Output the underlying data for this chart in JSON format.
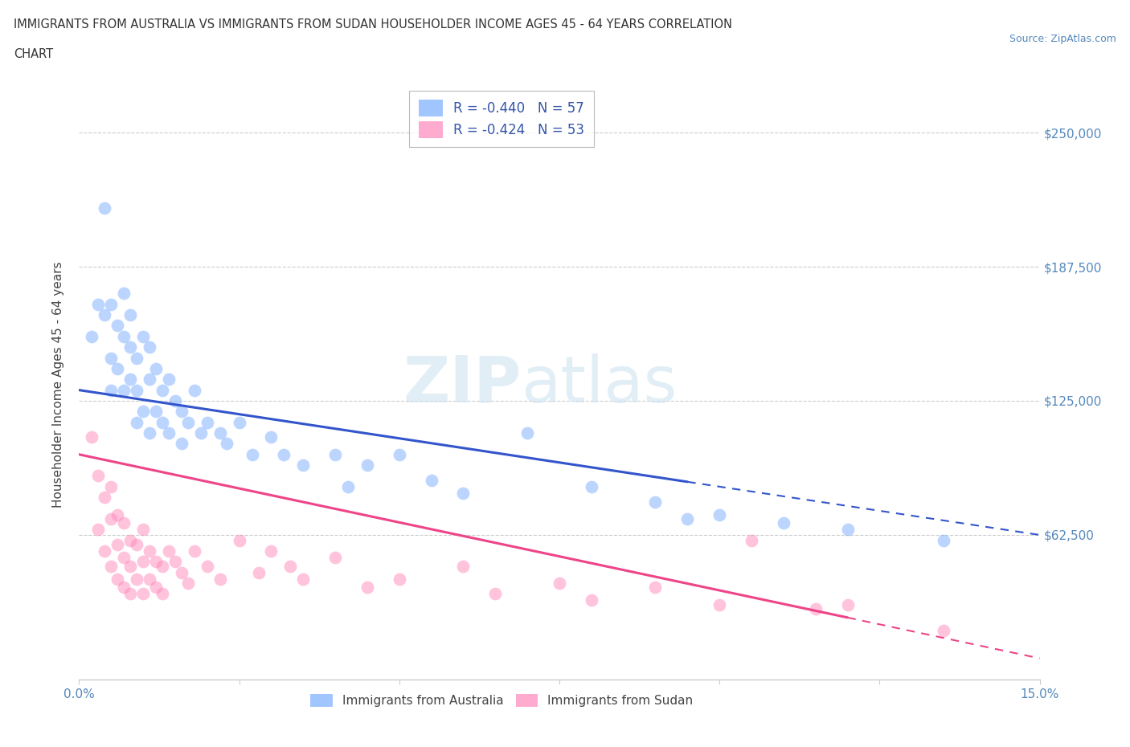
{
  "title_line1": "IMMIGRANTS FROM AUSTRALIA VS IMMIGRANTS FROM SUDAN HOUSEHOLDER INCOME AGES 45 - 64 YEARS CORRELATION",
  "title_line2": "CHART",
  "source": "Source: ZipAtlas.com",
  "ylabel": "Householder Income Ages 45 - 64 years",
  "xlim": [
    0.0,
    0.15
  ],
  "ylim": [
    -5000,
    270000
  ],
  "xticks": [
    0.0,
    0.025,
    0.05,
    0.075,
    0.1,
    0.125,
    0.15
  ],
  "xticklabels": [
    "0.0%",
    "",
    "",
    "",
    "",
    "",
    "15.0%"
  ],
  "ytick_positions": [
    0,
    62500,
    125000,
    187500,
    250000
  ],
  "ytick_labels": [
    "",
    "$62,500",
    "$125,000",
    "$187,500",
    "$250,000"
  ],
  "australia_color": "#7aadff",
  "australia_line_color": "#3355cc",
  "sudan_color": "#ff88bb",
  "sudan_line_color": "#ee4488",
  "australia_R": -0.44,
  "australia_N": 57,
  "sudan_R": -0.424,
  "sudan_N": 53,
  "watermark_zip": "ZIP",
  "watermark_atlas": "atlas",
  "aus_line_x0": 0.0,
  "aus_line_y0": 130000,
  "aus_line_x1": 0.15,
  "aus_line_y1": 62500,
  "sud_line_x0": 0.0,
  "sud_line_y0": 100000,
  "sud_line_x1": 0.15,
  "sud_line_y1": 5000,
  "australia_scatter_x": [
    0.002,
    0.003,
    0.004,
    0.004,
    0.005,
    0.005,
    0.005,
    0.006,
    0.006,
    0.007,
    0.007,
    0.007,
    0.008,
    0.008,
    0.008,
    0.009,
    0.009,
    0.009,
    0.01,
    0.01,
    0.011,
    0.011,
    0.011,
    0.012,
    0.012,
    0.013,
    0.013,
    0.014,
    0.014,
    0.015,
    0.016,
    0.016,
    0.017,
    0.018,
    0.019,
    0.02,
    0.022,
    0.023,
    0.025,
    0.027,
    0.03,
    0.032,
    0.035,
    0.04,
    0.042,
    0.045,
    0.05,
    0.055,
    0.06,
    0.07,
    0.08,
    0.09,
    0.095,
    0.1,
    0.11,
    0.12,
    0.135
  ],
  "australia_scatter_y": [
    155000,
    170000,
    165000,
    215000,
    170000,
    145000,
    130000,
    160000,
    140000,
    175000,
    155000,
    130000,
    165000,
    150000,
    135000,
    145000,
    130000,
    115000,
    155000,
    120000,
    150000,
    135000,
    110000,
    140000,
    120000,
    130000,
    115000,
    135000,
    110000,
    125000,
    120000,
    105000,
    115000,
    130000,
    110000,
    115000,
    110000,
    105000,
    115000,
    100000,
    108000,
    100000,
    95000,
    100000,
    85000,
    95000,
    100000,
    88000,
    82000,
    110000,
    85000,
    78000,
    70000,
    72000,
    68000,
    65000,
    60000
  ],
  "sudan_scatter_x": [
    0.002,
    0.003,
    0.003,
    0.004,
    0.004,
    0.005,
    0.005,
    0.005,
    0.006,
    0.006,
    0.006,
    0.007,
    0.007,
    0.007,
    0.008,
    0.008,
    0.008,
    0.009,
    0.009,
    0.01,
    0.01,
    0.01,
    0.011,
    0.011,
    0.012,
    0.012,
    0.013,
    0.013,
    0.014,
    0.015,
    0.016,
    0.017,
    0.018,
    0.02,
    0.022,
    0.025,
    0.028,
    0.03,
    0.033,
    0.035,
    0.04,
    0.045,
    0.05,
    0.06,
    0.065,
    0.075,
    0.08,
    0.09,
    0.1,
    0.105,
    0.115,
    0.12,
    0.135
  ],
  "sudan_scatter_y": [
    108000,
    90000,
    65000,
    80000,
    55000,
    85000,
    70000,
    48000,
    72000,
    58000,
    42000,
    68000,
    52000,
    38000,
    60000,
    48000,
    35000,
    58000,
    42000,
    65000,
    50000,
    35000,
    55000,
    42000,
    50000,
    38000,
    48000,
    35000,
    55000,
    50000,
    45000,
    40000,
    55000,
    48000,
    42000,
    60000,
    45000,
    55000,
    48000,
    42000,
    52000,
    38000,
    42000,
    48000,
    35000,
    40000,
    32000,
    38000,
    30000,
    60000,
    28000,
    30000,
    18000
  ]
}
